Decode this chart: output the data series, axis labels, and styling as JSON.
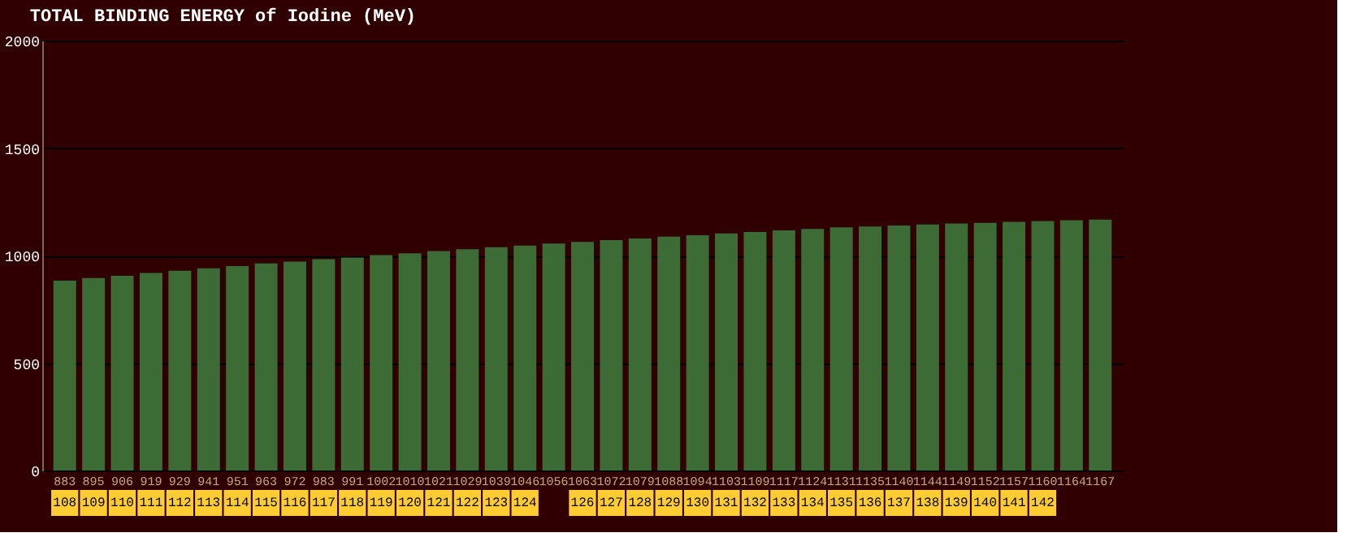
{
  "chart_data": {
    "type": "bar",
    "title": "TOTAL BINDING ENERGY of Iodine (MeV)",
    "categories": [
      "108",
      "109",
      "110",
      "111",
      "112",
      "113",
      "114",
      "115",
      "116",
      "117",
      "118",
      "119",
      "120",
      "121",
      "122",
      "123",
      "124",
      null,
      "126",
      "127",
      "128",
      "129",
      "130",
      "131",
      "132",
      "133",
      "134",
      "135",
      "136",
      "137",
      "138",
      "139",
      "140",
      "141",
      "142",
      null,
      null
    ],
    "values": [
      883,
      895,
      906,
      919,
      929,
      941,
      951,
      963,
      972,
      983,
      991,
      1002,
      1010,
      1021,
      1029,
      1039,
      1046,
      1056,
      1063,
      1072,
      1079,
      1088,
      1094,
      1103,
      1109,
      1117,
      1124,
      1131,
      1135,
      1140,
      1144,
      1149,
      1152,
      1157,
      1160,
      1164,
      1167
    ],
    "color": "#3c6b36",
    "data_labels": true,
    "ylim": [
      0,
      2000
    ],
    "yticks": [
      0,
      500,
      1000,
      1500,
      2000
    ],
    "grid": "y"
  }
}
